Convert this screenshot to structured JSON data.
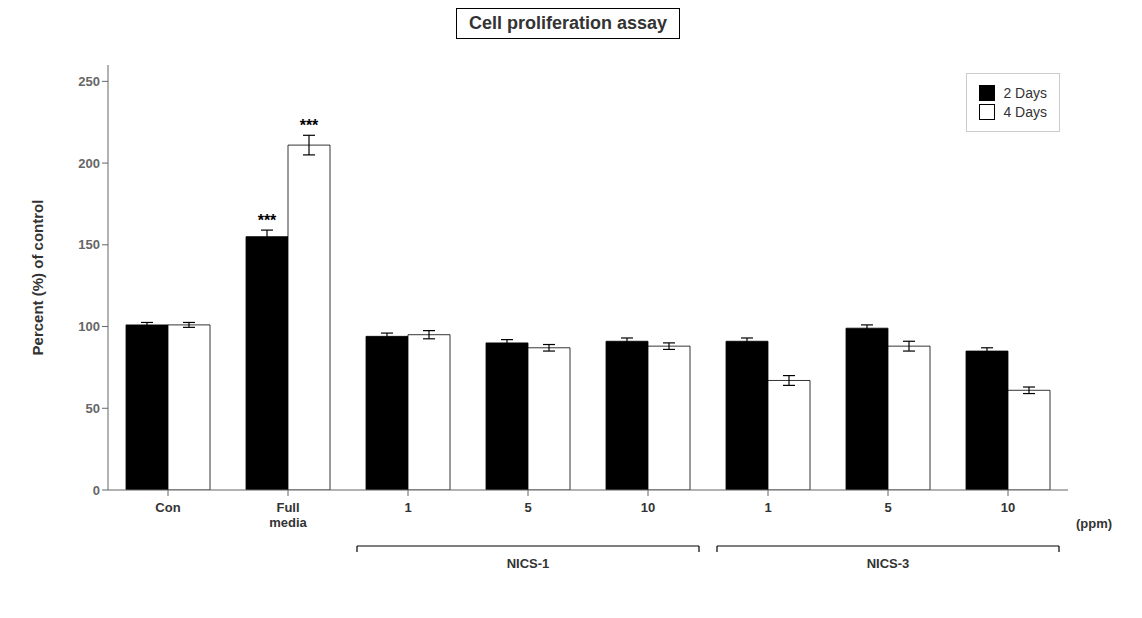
{
  "chart_data": {
    "type": "bar",
    "title": "Cell proliferation assay",
    "ylabel": "Percent (%) of control",
    "xlabel": "(ppm)",
    "categories": [
      "Con",
      "Full\nmedia",
      "1",
      "5",
      "10",
      "1",
      "5",
      "10"
    ],
    "series": [
      {
        "name": "2 Days",
        "color": "#000000",
        "values": [
          101,
          155,
          94,
          90,
          91,
          91,
          99,
          85
        ],
        "errors": [
          1.5,
          4,
          2,
          2,
          2,
          2,
          2,
          2
        ]
      },
      {
        "name": "4 Days",
        "color": "#ffffff",
        "values": [
          101,
          211,
          95,
          87,
          88,
          67,
          88,
          61
        ],
        "errors": [
          1.5,
          6,
          2.5,
          2,
          2,
          3,
          3,
          2
        ]
      }
    ],
    "ylim": [
      0,
      260
    ],
    "yticks": [
      0,
      50,
      100,
      150,
      200,
      250
    ],
    "grid": false,
    "legend": "upper right",
    "annotations": [
      {
        "text": "***",
        "series": "2 Days",
        "index": 1
      },
      {
        "text": "***",
        "series": "4 Days",
        "index": 1
      }
    ],
    "groups": [
      {
        "label": "NICS-1",
        "indices": [
          2,
          3,
          4
        ]
      },
      {
        "label": "NICS-3",
        "indices": [
          5,
          6,
          7
        ]
      }
    ]
  }
}
